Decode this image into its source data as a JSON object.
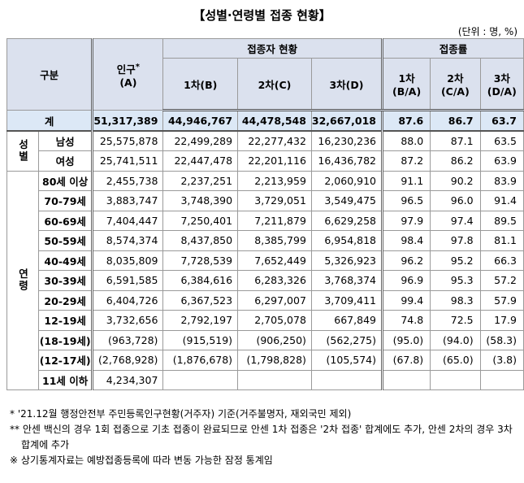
{
  "header": {
    "title": "【성별·연령별 접종 현황】",
    "unit": "(단위 : 명, %)"
  },
  "table": {
    "header": {
      "category": "구분",
      "population": {
        "label": "인구",
        "mark": "*",
        "unit": "(A)"
      },
      "doses_group": "접종자 현황",
      "doses": [
        "1차(B)",
        "2차(C)",
        "3차(D)"
      ],
      "rates_group": "접종률",
      "rates": [
        {
          "dose": "1차",
          "ratio": "(B/A)"
        },
        {
          "dose": "2차",
          "ratio": "(C/A)"
        },
        {
          "dose": "3차",
          "ratio": "(D/A)"
        }
      ]
    },
    "total": {
      "label": "계",
      "cells": [
        "51,317,389",
        "44,946,767",
        "44,478,548",
        "32,667,018",
        "87.6",
        "86.7",
        "63.7"
      ]
    },
    "groups": [
      {
        "label": "성별",
        "rows": [
          {
            "label": "남성",
            "cells": [
              "25,575,878",
              "22,499,289",
              "22,277,432",
              "16,230,236",
              "88.0",
              "87.1",
              "63.5"
            ]
          },
          {
            "label": "여성",
            "cells": [
              "25,741,511",
              "22,447,478",
              "22,201,116",
              "16,436,782",
              "87.2",
              "86.2",
              "63.9"
            ]
          }
        ]
      },
      {
        "label": "연령",
        "rows": [
          {
            "label": "80세 이상",
            "cells": [
              "2,455,738",
              "2,237,251",
              "2,213,959",
              "2,060,910",
              "91.1",
              "90.2",
              "83.9"
            ]
          },
          {
            "label": "70-79세",
            "cells": [
              "3,883,747",
              "3,748,390",
              "3,729,051",
              "3,549,475",
              "96.5",
              "96.0",
              "91.4"
            ]
          },
          {
            "label": "60-69세",
            "cells": [
              "7,404,447",
              "7,250,401",
              "7,211,879",
              "6,629,258",
              "97.9",
              "97.4",
              "89.5"
            ]
          },
          {
            "label": "50-59세",
            "cells": [
              "8,574,374",
              "8,437,850",
              "8,385,799",
              "6,954,818",
              "98.4",
              "97.8",
              "81.1"
            ]
          },
          {
            "label": "40-49세",
            "cells": [
              "8,035,809",
              "7,728,539",
              "7,652,449",
              "5,326,923",
              "96.2",
              "95.2",
              "66.3"
            ]
          },
          {
            "label": "30-39세",
            "cells": [
              "6,591,585",
              "6,384,616",
              "6,283,326",
              "3,768,374",
              "96.9",
              "95.3",
              "57.2"
            ]
          },
          {
            "label": "20-29세",
            "cells": [
              "6,404,726",
              "6,367,523",
              "6,297,007",
              "3,709,411",
              "99.4",
              "98.3",
              "57.9"
            ]
          },
          {
            "label": "12-19세",
            "cells": [
              "3,732,656",
              "2,792,197",
              "2,705,078",
              "667,849",
              "74.8",
              "72.5",
              "17.9"
            ]
          },
          {
            "label": "(18-19세)",
            "cells": [
              "(963,728)",
              "(915,519)",
              "(906,250)",
              "(562,275)",
              "(95.0)",
              "(94.0)",
              "(58.3)"
            ]
          },
          {
            "label": "(12-17세)",
            "cells": [
              "(2,768,928)",
              "(1,876,678)",
              "(1,798,828)",
              "(105,574)",
              "(67.8)",
              "(65.0)",
              "(3.8)"
            ]
          },
          {
            "label": "11세 이하",
            "cells": [
              "4,234,307"
            ]
          }
        ]
      }
    ]
  },
  "notes": [
    "* '21.12월 행정안전부 주민등록인구현황(거주자) 기준(거주불명자, 재외국민 제외)",
    "** 안센 백신의 경우 1회 접종으로 기초 접종이 완료되므로 안센 1차 접종은 '2차 접종' 합계에도 추가, 안센 2차의 경우 3차 합계에 추가",
    "※ 상기통계자료는 예방접종등록에 따라 변동 가능한 잠정 통계임"
  ]
}
